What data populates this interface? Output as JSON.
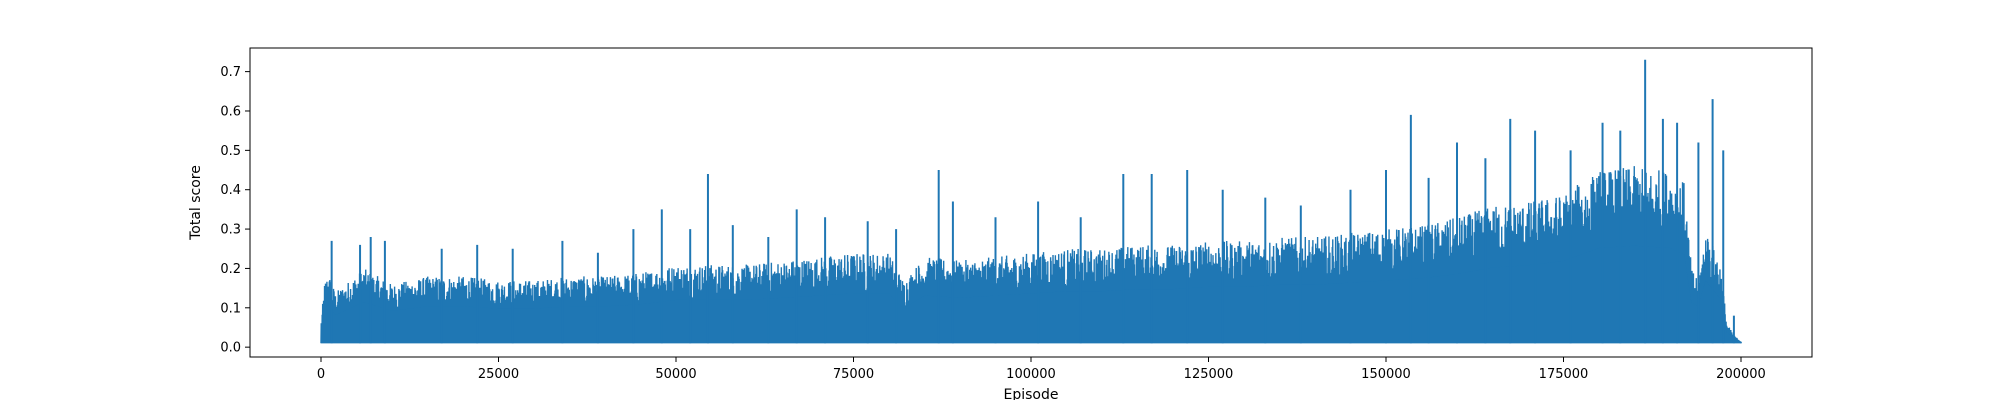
{
  "chart_data": {
    "type": "line",
    "title": "",
    "xlabel": "Episode",
    "ylabel": "Total score",
    "xlim": [
      -10000,
      210000
    ],
    "ylim": [
      -0.025,
      0.76
    ],
    "xticks": [
      0,
      25000,
      50000,
      75000,
      100000,
      125000,
      150000,
      175000,
      200000
    ],
    "xtick_labels": [
      "0",
      "25000",
      "50000",
      "75000",
      "100000",
      "125000",
      "150000",
      "175000",
      "200000"
    ],
    "yticks": [
      0.0,
      0.1,
      0.2,
      0.3,
      0.4,
      0.5,
      0.6,
      0.7
    ],
    "ytick_labels": [
      "0.0",
      "0.1",
      "0.2",
      "0.3",
      "0.4",
      "0.5",
      "0.6",
      "0.7"
    ],
    "grid": false,
    "series": [
      {
        "color": "#1f77b4",
        "baseline": 0.01,
        "x": [
          0,
          500,
          1000,
          2000,
          4000,
          6000,
          8000,
          10000,
          15000,
          20000,
          25000,
          30000,
          35000,
          40000,
          45000,
          50000,
          55000,
          60000,
          65000,
          70000,
          75000,
          80000,
          82000,
          85000,
          90000,
          95000,
          100000,
          105000,
          110000,
          115000,
          120000,
          125000,
          130000,
          135000,
          140000,
          145000,
          150000,
          155000,
          160000,
          165000,
          170000,
          175000,
          180000,
          185000,
          190000,
          192000,
          193000,
          194000,
          195000,
          196000,
          197000,
          198000,
          199000,
          200000
        ],
        "upper": [
          0.07,
          0.17,
          0.19,
          0.14,
          0.17,
          0.2,
          0.18,
          0.16,
          0.18,
          0.18,
          0.17,
          0.17,
          0.18,
          0.18,
          0.19,
          0.21,
          0.21,
          0.21,
          0.22,
          0.23,
          0.24,
          0.24,
          0.17,
          0.23,
          0.22,
          0.23,
          0.24,
          0.25,
          0.25,
          0.26,
          0.26,
          0.27,
          0.27,
          0.28,
          0.28,
          0.29,
          0.3,
          0.31,
          0.33,
          0.36,
          0.37,
          0.39,
          0.45,
          0.46,
          0.45,
          0.42,
          0.2,
          0.18,
          0.3,
          0.26,
          0.22,
          0.06,
          0.03,
          0.015
        ],
        "peaks": [
          {
            "x": 1500,
            "y": 0.27
          },
          {
            "x": 5500,
            "y": 0.26
          },
          {
            "x": 7000,
            "y": 0.28
          },
          {
            "x": 9000,
            "y": 0.27
          },
          {
            "x": 17000,
            "y": 0.25
          },
          {
            "x": 22000,
            "y": 0.26
          },
          {
            "x": 27000,
            "y": 0.25
          },
          {
            "x": 34000,
            "y": 0.27
          },
          {
            "x": 39000,
            "y": 0.24
          },
          {
            "x": 44000,
            "y": 0.3
          },
          {
            "x": 48000,
            "y": 0.35
          },
          {
            "x": 52000,
            "y": 0.3
          },
          {
            "x": 54500,
            "y": 0.44
          },
          {
            "x": 58000,
            "y": 0.31
          },
          {
            "x": 63000,
            "y": 0.28
          },
          {
            "x": 67000,
            "y": 0.35
          },
          {
            "x": 71000,
            "y": 0.33
          },
          {
            "x": 77000,
            "y": 0.32
          },
          {
            "x": 81000,
            "y": 0.3
          },
          {
            "x": 87000,
            "y": 0.45
          },
          {
            "x": 89000,
            "y": 0.37
          },
          {
            "x": 95000,
            "y": 0.33
          },
          {
            "x": 101000,
            "y": 0.37
          },
          {
            "x": 107000,
            "y": 0.33
          },
          {
            "x": 113000,
            "y": 0.44
          },
          {
            "x": 117000,
            "y": 0.44
          },
          {
            "x": 122000,
            "y": 0.45
          },
          {
            "x": 127000,
            "y": 0.4
          },
          {
            "x": 133000,
            "y": 0.38
          },
          {
            "x": 138000,
            "y": 0.36
          },
          {
            "x": 145000,
            "y": 0.4
          },
          {
            "x": 150000,
            "y": 0.45
          },
          {
            "x": 153500,
            "y": 0.59
          },
          {
            "x": 156000,
            "y": 0.43
          },
          {
            "x": 160000,
            "y": 0.52
          },
          {
            "x": 164000,
            "y": 0.48
          },
          {
            "x": 167500,
            "y": 0.58
          },
          {
            "x": 171000,
            "y": 0.55
          },
          {
            "x": 176000,
            "y": 0.5
          },
          {
            "x": 180500,
            "y": 0.57
          },
          {
            "x": 183000,
            "y": 0.55
          },
          {
            "x": 186500,
            "y": 0.73
          },
          {
            "x": 189000,
            "y": 0.58
          },
          {
            "x": 191000,
            "y": 0.57
          },
          {
            "x": 194000,
            "y": 0.52
          },
          {
            "x": 196000,
            "y": 0.63
          },
          {
            "x": 197500,
            "y": 0.5
          },
          {
            "x": 199000,
            "y": 0.08
          }
        ]
      }
    ]
  }
}
